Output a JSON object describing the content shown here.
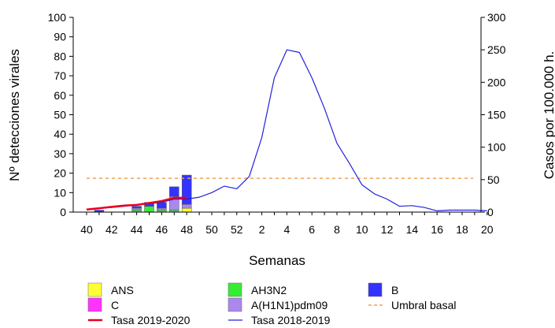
{
  "chart_data": {
    "type": "bar",
    "xlabel": "Semanas",
    "ylabel": "Nº detecciones virales",
    "y2label": "Casos por 100.000 h.",
    "ylim": [
      0,
      100
    ],
    "y2lim": [
      0,
      300
    ],
    "yticks": [
      0,
      10,
      20,
      30,
      40,
      50,
      60,
      70,
      80,
      90,
      100
    ],
    "y2ticks": [
      0,
      50,
      100,
      150,
      200,
      250,
      300
    ],
    "weeks": [
      40,
      41,
      42,
      43,
      44,
      45,
      46,
      47,
      48,
      49,
      50,
      51,
      52,
      1,
      2,
      3,
      4,
      5,
      6,
      7,
      8,
      9,
      10,
      11,
      12,
      13,
      14,
      15,
      16,
      17,
      18,
      19,
      20
    ],
    "xtick_labels": [
      "40",
      "42",
      "44",
      "46",
      "48",
      "50",
      "52",
      "2",
      "4",
      "6",
      "8",
      "10",
      "12",
      "14",
      "16",
      "18",
      "20"
    ],
    "bar_series": [
      {
        "name": "ANS",
        "color": "#ffff33",
        "values": [
          0,
          0,
          0,
          0,
          0,
          0,
          0,
          0,
          2
        ]
      },
      {
        "name": "C",
        "color": "#ff33ff",
        "values": [
          0,
          0,
          0,
          0,
          0,
          0,
          0,
          0,
          0
        ]
      },
      {
        "name": "AH3N2",
        "color": "#33ee33",
        "values": [
          0,
          0,
          0,
          0,
          1,
          3,
          1,
          1,
          0
        ]
      },
      {
        "name": "A(H1N1)pdm09",
        "color": "#aa88ee",
        "values": [
          0,
          0,
          0,
          0,
          1,
          0,
          1,
          7,
          2
        ]
      },
      {
        "name": "B",
        "color": "#3333ff",
        "values": [
          0,
          1,
          0,
          0,
          1,
          2,
          3,
          5,
          15
        ]
      }
    ],
    "line_series": [
      {
        "name": "Tasa 2019-2020",
        "color": "#e8001c",
        "axis": "right",
        "values": [
          4,
          6,
          8,
          10,
          11,
          14,
          17,
          22,
          22
        ]
      },
      {
        "name": "Tasa 2018-2019",
        "color": "#2222dd",
        "axis": "right",
        "values": [
          4,
          6,
          7,
          9,
          11,
          13,
          15,
          20,
          20,
          23,
          30,
          40,
          36,
          55,
          115,
          207,
          250,
          246,
          207,
          160,
          106,
          75,
          42,
          28,
          20,
          9,
          10,
          7,
          2,
          3,
          3,
          3,
          2
        ]
      }
    ],
    "reference_lines": [
      {
        "name": "Umbral basal",
        "color": "#f0a050",
        "axis": "right",
        "value": 52
      }
    ],
    "legend": {
      "placement": "bottom",
      "items": [
        {
          "label": "ANS",
          "kind": "box",
          "color": "#ffff33"
        },
        {
          "label": "AH3N2",
          "kind": "box",
          "color": "#33ee33"
        },
        {
          "label": "B",
          "kind": "box",
          "color": "#3333ff"
        },
        {
          "label": "C",
          "kind": "box",
          "color": "#ff33ff"
        },
        {
          "label": "A(H1N1)pdm09",
          "kind": "box",
          "color": "#aa88ee"
        },
        {
          "label": "Umbral basal",
          "kind": "dash",
          "color": "#f0a050"
        },
        {
          "label": "Tasa 2019-2020",
          "kind": "line",
          "color": "#e8001c"
        },
        {
          "label": "Tasa 2018-2019",
          "kind": "line",
          "color": "#2222dd"
        }
      ]
    }
  }
}
